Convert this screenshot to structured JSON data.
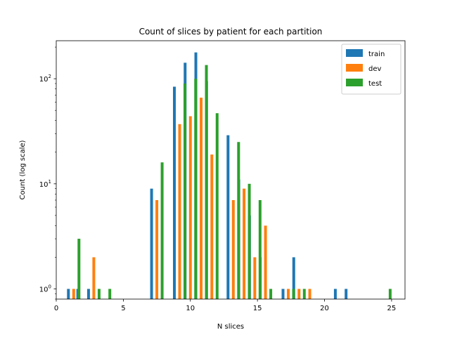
{
  "chart_data": {
    "type": "bar",
    "title": "Count of slices by patient for each partition",
    "xlabel": "N slices",
    "ylabel": "Count (log scale)",
    "xlim": [
      0,
      26
    ],
    "ylim": [
      0.8,
      230
    ],
    "yscale": "log",
    "grid": false,
    "legend_position": "top-right",
    "x_ticks": [
      0,
      5,
      10,
      15,
      20,
      25
    ],
    "y_ticks": [
      {
        "value": 1,
        "base": "10",
        "exp": "0"
      },
      {
        "value": 10,
        "base": "10",
        "exp": "1"
      },
      {
        "value": 100,
        "base": "10",
        "exp": "2"
      }
    ],
    "series": [
      {
        "name": "train",
        "color": "#1f77b4",
        "bins": [
          {
            "x": 1.3,
            "value": 1
          },
          {
            "x": 2.0,
            "value": 1
          },
          {
            "x": 2.8,
            "value": 1
          },
          {
            "x": 7.5,
            "value": 9
          },
          {
            "x": 9.2,
            "value": 84
          },
          {
            "x": 10.0,
            "value": 142
          },
          {
            "x": 10.8,
            "value": 178
          },
          {
            "x": 11.6,
            "value": 95
          },
          {
            "x": 13.2,
            "value": 29
          },
          {
            "x": 14.0,
            "value": 11
          },
          {
            "x": 14.8,
            "value": 5
          },
          {
            "x": 15.6,
            "value": 2
          },
          {
            "x": 17.3,
            "value": 1
          },
          {
            "x": 18.1,
            "value": 2
          },
          {
            "x": 21.2,
            "value": 1
          },
          {
            "x": 22.0,
            "value": 1
          }
        ]
      },
      {
        "name": "dev",
        "color": "#ff7f0e",
        "bins": [
          {
            "x": 1.3,
            "value": 1
          },
          {
            "x": 2.8,
            "value": 2
          },
          {
            "x": 7.5,
            "value": 7
          },
          {
            "x": 9.2,
            "value": 37
          },
          {
            "x": 10.0,
            "value": 44
          },
          {
            "x": 10.8,
            "value": 66
          },
          {
            "x": 11.6,
            "value": 19
          },
          {
            "x": 13.2,
            "value": 7
          },
          {
            "x": 14.0,
            "value": 9
          },
          {
            "x": 14.8,
            "value": 2
          },
          {
            "x": 15.6,
            "value": 4
          },
          {
            "x": 17.3,
            "value": 1
          },
          {
            "x": 18.1,
            "value": 1
          },
          {
            "x": 18.9,
            "value": 1
          }
        ]
      },
      {
        "name": "test",
        "color": "#2ca02c",
        "bins": [
          {
            "x": 1.3,
            "value": 3
          },
          {
            "x": 2.8,
            "value": 1
          },
          {
            "x": 3.6,
            "value": 1
          },
          {
            "x": 7.5,
            "value": 16
          },
          {
            "x": 9.2,
            "value": 90
          },
          {
            "x": 10.0,
            "value": 100
          },
          {
            "x": 10.8,
            "value": 135
          },
          {
            "x": 11.6,
            "value": 47
          },
          {
            "x": 13.2,
            "value": 25
          },
          {
            "x": 14.0,
            "value": 10
          },
          {
            "x": 14.8,
            "value": 7
          },
          {
            "x": 15.6,
            "value": 1
          },
          {
            "x": 17.3,
            "value": 1
          },
          {
            "x": 18.1,
            "value": 1
          },
          {
            "x": 24.5,
            "value": 1
          }
        ]
      }
    ]
  }
}
